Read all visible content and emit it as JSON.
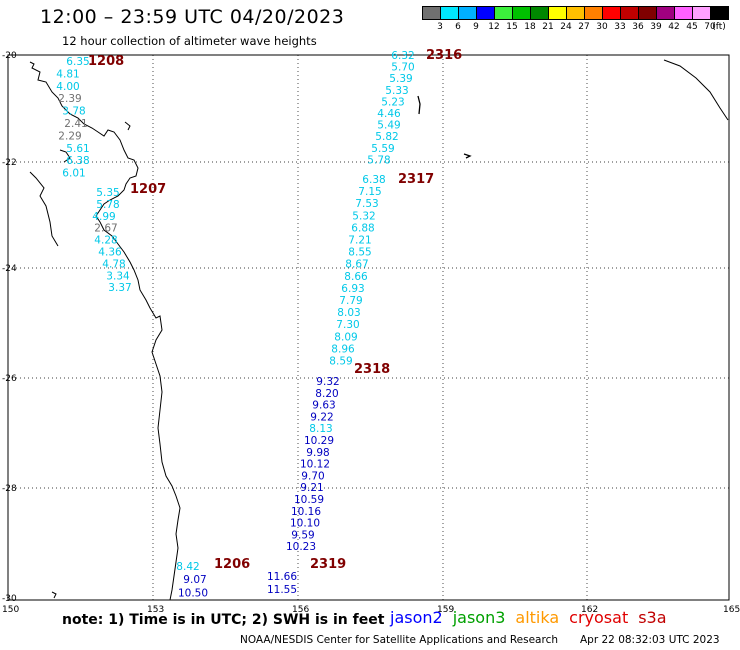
{
  "title": "12:00 – 23:59 UTC 04/20/2023",
  "subtitle": "12 hour collection of altimeter wave heights",
  "legend": {
    "colors": [
      "#707070",
      "#00e8ff",
      "#00b0ff",
      "#0000ff",
      "#3cf03c",
      "#00c000",
      "#008800",
      "#ffff00",
      "#ffc000",
      "#ff8000",
      "#ff0000",
      "#c00000",
      "#800000",
      "#a00080",
      "#ff60ff",
      "#ffa0ff",
      "#000000"
    ],
    "labels": [
      "3",
      "6",
      "9",
      "12",
      "15",
      "18",
      "21",
      "24",
      "27",
      "30",
      "33",
      "36",
      "39",
      "42",
      "45",
      "70",
      "(ft)"
    ]
  },
  "axes": {
    "lat_labels": [
      "-20",
      "-22",
      "-24",
      "-26",
      "-28",
      "-30"
    ],
    "lon_labels": [
      "150",
      "153",
      "156",
      "159",
      "162",
      "165"
    ]
  },
  "tracks": [
    {
      "label": "1208",
      "time_color": "#800000",
      "color": "#00c8e8",
      "values": [
        "6.35",
        "4.81",
        "4.00",
        "2.39",
        "3.78",
        "2.41",
        "2.29",
        "5.61",
        "6.38",
        "6.01"
      ],
      "value_colors": [
        "#00c8e8",
        "#00c8e8",
        "#00c8e8",
        "#707070",
        "#00c8e8",
        "#707070",
        "#707070",
        "#00c8e8",
        "#00c8e8",
        "#00c8e8"
      ]
    },
    {
      "label": "1207",
      "time_color": "#800000",
      "values": [
        "5.35",
        "5.78",
        "4.99",
        "2.67",
        "4.28",
        "4.36",
        "4.78",
        "3.34",
        "3.37"
      ],
      "value_colors": [
        "#00c8e8",
        "#00c8e8",
        "#00c8e8",
        "#707070",
        "#00c8e8",
        "#00c8e8",
        "#00c8e8",
        "#00c8e8",
        "#00c8e8"
      ]
    },
    {
      "label": "2316",
      "time_color": "#800000",
      "values": [
        "6.32",
        "5.70",
        "5.39",
        "5.33",
        "5.23",
        "4.46",
        "5.49",
        "5.82",
        "5.59",
        "5.78"
      ],
      "value_colors": [
        "#00c8e8",
        "#00c8e8",
        "#00c8e8",
        "#00c8e8",
        "#00c8e8",
        "#00c8e8",
        "#00c8e8",
        "#00c8e8",
        "#00c8e8",
        "#00c8e8"
      ]
    },
    {
      "label": "2317",
      "time_color": "#800000",
      "values": [
        "6.38",
        "7.15",
        "7.53",
        "5.32",
        "6.88",
        "7.21",
        "8.55",
        "8.67",
        "8.66",
        "6.93",
        "7.79",
        "8.03",
        "7.30",
        "8.09",
        "8.96",
        "8.59"
      ],
      "value_colors": [
        "#00c8e8",
        "#00c8e8",
        "#00c8e8",
        "#00c8e8",
        "#00c8e8",
        "#00c8e8",
        "#00c8e8",
        "#00c8e8",
        "#00c8e8",
        "#00c8e8",
        "#00c8e8",
        "#00c8e8",
        "#00c8e8",
        "#00c8e8",
        "#00c8e8",
        "#00c8e8"
      ]
    },
    {
      "label": "2318",
      "time_color": "#800000",
      "values": [
        "9.32",
        "8.20",
        "9.63",
        "9.22",
        "8.13",
        "10.29",
        "9.98",
        "10.12",
        "9.70",
        "9.21",
        "10.59",
        "10.16",
        "10.10",
        "9.59",
        "10.23"
      ],
      "value_colors": [
        "#0000c0",
        "#0000c0",
        "#0000c0",
        "#0000c0",
        "#00c8e8",
        "#0000c0",
        "#0000c0",
        "#0000c0",
        "#0000c0",
        "#0000c0",
        "#0000c0",
        "#0000c0",
        "#0000c0",
        "#0000c0",
        "#0000c0"
      ]
    },
    {
      "label": "2319",
      "time_color": "#800000",
      "values": [
        "11.66",
        "11.55"
      ],
      "value_colors": [
        "#0000c0",
        "#0000c0"
      ]
    },
    {
      "label": "1206",
      "time_color": "#800000",
      "values": [
        "8.42",
        "9.07",
        "10.50"
      ],
      "value_colors": [
        "#00c8e8",
        "#0000c0",
        "#0000c0"
      ]
    }
  ],
  "note": "note: 1) Time is in UTC; 2) SWH is in feet",
  "satellites": [
    {
      "name": "jason2",
      "color": "#0000ff"
    },
    {
      "name": "jason3",
      "color": "#00a000"
    },
    {
      "name": "altika",
      "color": "#ff9900"
    },
    {
      "name": "cryosat",
      "color": "#e00000"
    },
    {
      "name": "s3a",
      "color": "#c00000"
    }
  ],
  "credit": "NOAA/NESDIS Center for Satellite Applications and Research",
  "timestamp": "Apr 22 08:32:03 UTC 2023"
}
